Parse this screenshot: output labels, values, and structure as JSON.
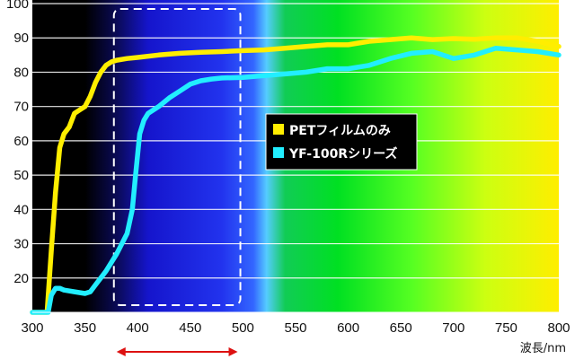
{
  "chart_data": {
    "type": "line",
    "xlabel": "波長/nm",
    "ylabel": "",
    "xlim": [
      300,
      800
    ],
    "ylim": [
      10,
      100
    ],
    "x_ticks": [
      300,
      350,
      400,
      450,
      500,
      550,
      600,
      650,
      700,
      750,
      800
    ],
    "y_ticks": [
      20,
      30,
      40,
      50,
      60,
      70,
      80,
      90,
      100
    ],
    "grid": true,
    "legend_position": "center-right",
    "background": "visible light spectrum gradient (black UV region, blue, cyan, green, yellow)",
    "series": [
      {
        "name": "PETフィルムのみ",
        "color": "#ffee00",
        "points": [
          [
            300,
            10
          ],
          [
            310,
            10
          ],
          [
            314,
            10
          ],
          [
            318,
            28
          ],
          [
            322,
            45
          ],
          [
            326,
            58
          ],
          [
            330,
            62
          ],
          [
            335,
            64
          ],
          [
            340,
            68
          ],
          [
            345,
            69
          ],
          [
            350,
            70
          ],
          [
            355,
            73
          ],
          [
            360,
            77
          ],
          [
            365,
            80
          ],
          [
            370,
            82
          ],
          [
            375,
            83
          ],
          [
            380,
            83.5
          ],
          [
            390,
            84
          ],
          [
            400,
            84.3
          ],
          [
            420,
            85
          ],
          [
            440,
            85.5
          ],
          [
            460,
            85.8
          ],
          [
            480,
            86
          ],
          [
            500,
            86.3
          ],
          [
            520,
            86.5
          ],
          [
            540,
            87
          ],
          [
            560,
            87.5
          ],
          [
            580,
            88
          ],
          [
            600,
            88
          ],
          [
            620,
            89
          ],
          [
            640,
            89.5
          ],
          [
            660,
            90
          ],
          [
            680,
            89.5
          ],
          [
            700,
            89.8
          ],
          [
            720,
            89.6
          ],
          [
            740,
            90
          ],
          [
            760,
            90
          ],
          [
            780,
            89
          ],
          [
            800,
            87.5
          ]
        ]
      },
      {
        "name": "YF-100Rシリーズ",
        "color": "#22eeff",
        "points": [
          [
            300,
            10
          ],
          [
            310,
            10
          ],
          [
            315,
            10
          ],
          [
            318,
            15
          ],
          [
            322,
            17
          ],
          [
            326,
            17
          ],
          [
            330,
            16.5
          ],
          [
            340,
            16
          ],
          [
            350,
            15.5
          ],
          [
            355,
            16
          ],
          [
            360,
            18
          ],
          [
            370,
            22
          ],
          [
            380,
            27
          ],
          [
            390,
            33
          ],
          [
            395,
            40
          ],
          [
            398,
            50
          ],
          [
            402,
            62
          ],
          [
            406,
            66
          ],
          [
            410,
            68
          ],
          [
            420,
            70
          ],
          [
            430,
            72.5
          ],
          [
            440,
            74.5
          ],
          [
            450,
            76.5
          ],
          [
            460,
            77.5
          ],
          [
            470,
            78
          ],
          [
            480,
            78.3
          ],
          [
            500,
            78.5
          ],
          [
            520,
            79
          ],
          [
            540,
            79.5
          ],
          [
            560,
            80
          ],
          [
            580,
            81
          ],
          [
            600,
            81
          ],
          [
            620,
            82
          ],
          [
            640,
            84
          ],
          [
            660,
            85.5
          ],
          [
            680,
            86
          ],
          [
            700,
            84
          ],
          [
            720,
            85
          ],
          [
            740,
            87
          ],
          [
            760,
            86.5
          ],
          [
            780,
            86
          ],
          [
            800,
            85
          ]
        ]
      }
    ],
    "annotations": [
      {
        "type": "dashed-box",
        "x_range": [
          380,
          495
        ],
        "y_range": [
          10,
          100
        ],
        "color": "#ffffff"
      },
      {
        "type": "double-arrow",
        "x_range": [
          380,
          495
        ],
        "color": "#dd1111"
      }
    ]
  }
}
